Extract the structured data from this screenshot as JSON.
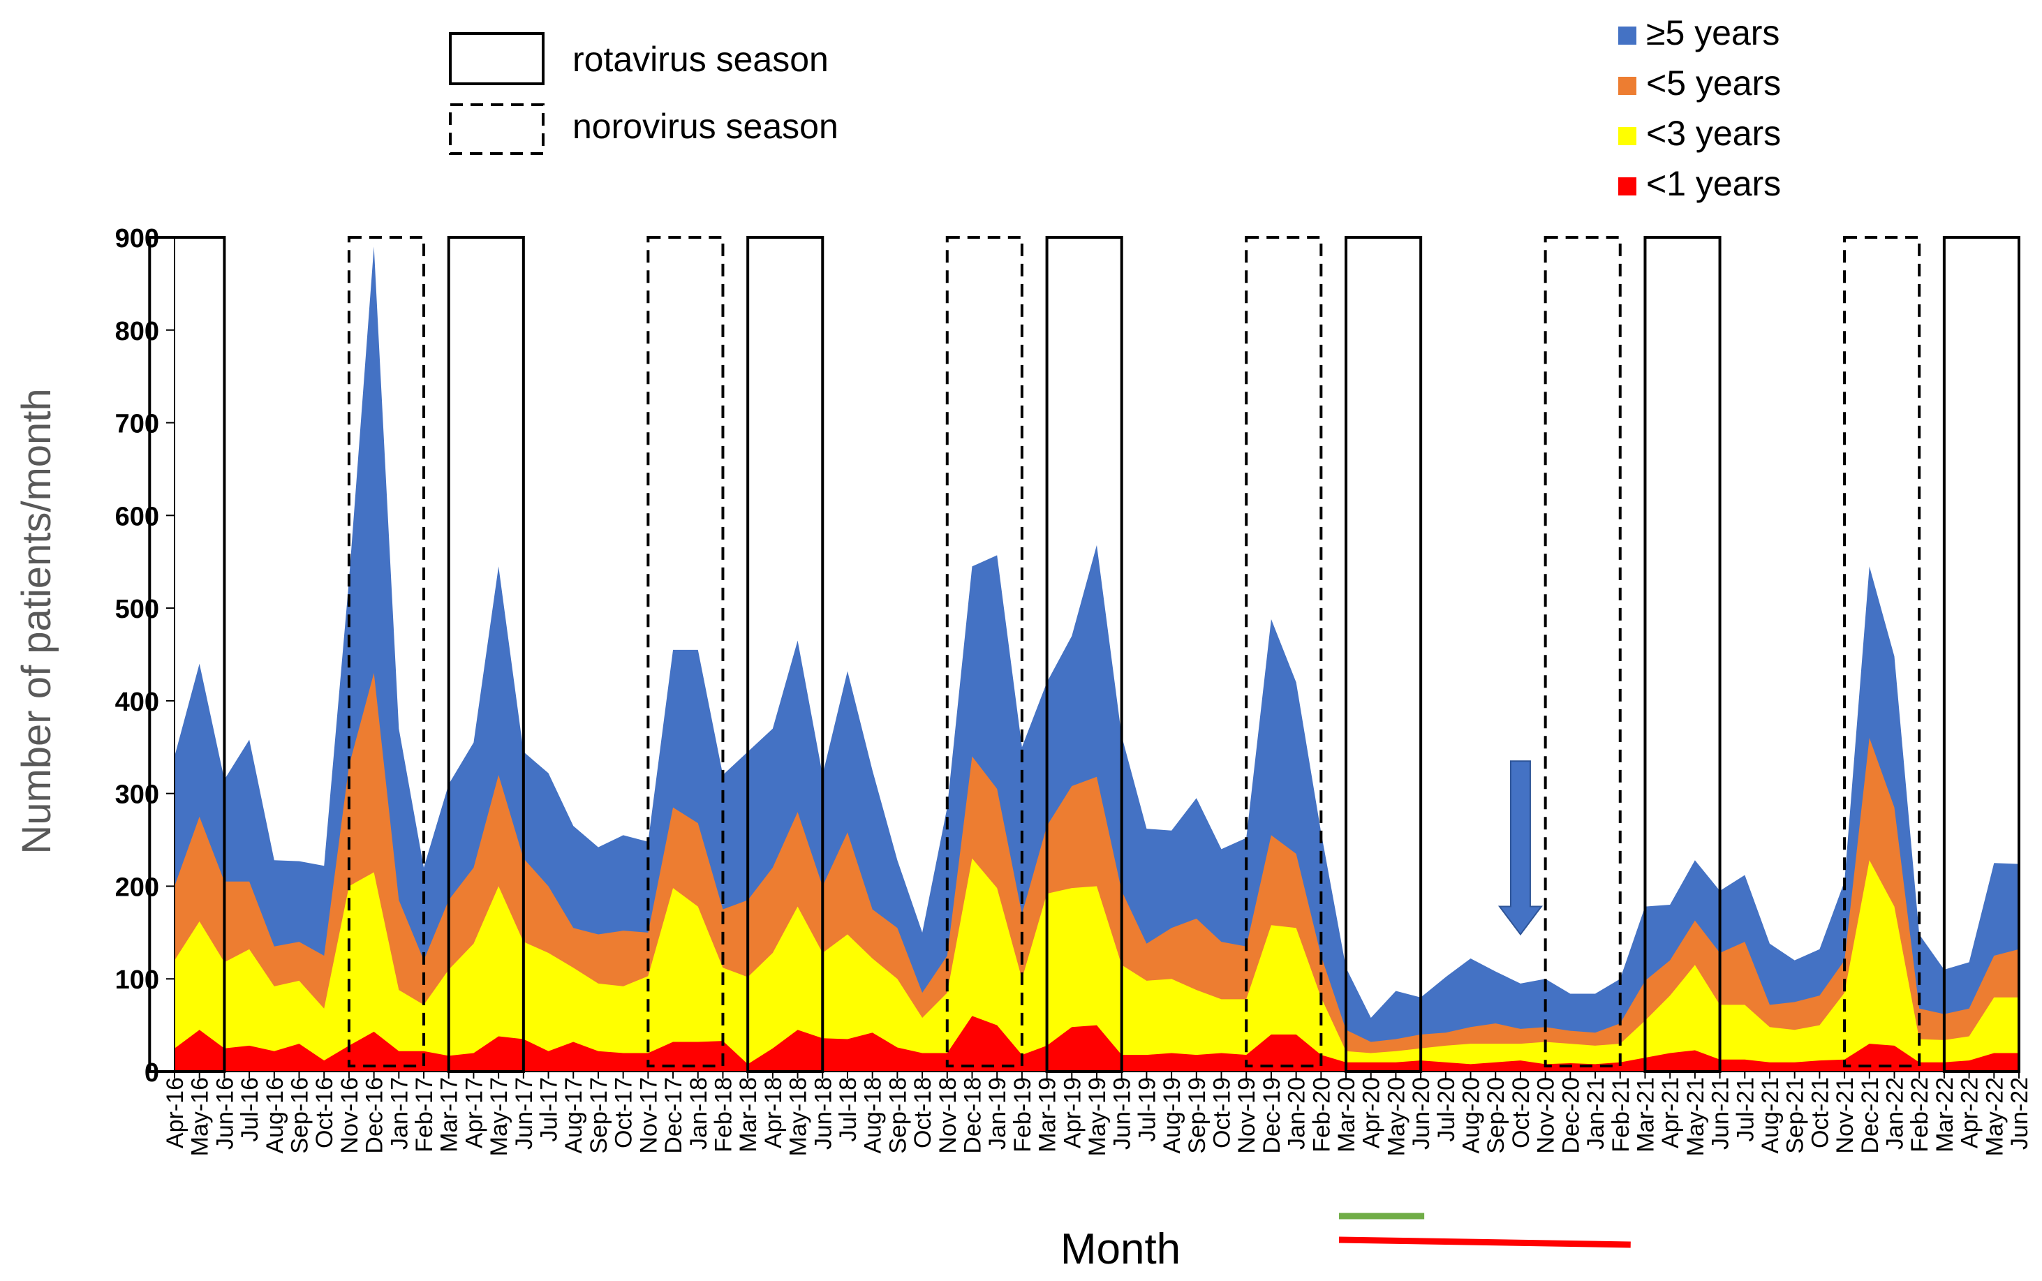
{
  "chart_data": {
    "type": "area",
    "stacked": false,
    "title": "",
    "xlabel": "Month",
    "ylabel": "Number of patients/month",
    "ylim": [
      0,
      900
    ],
    "yticks": [
      0,
      100,
      200,
      300,
      400,
      500,
      600,
      700,
      800,
      900
    ],
    "grid": false,
    "legend_position": "top-right",
    "categories": [
      "Apr-16",
      "May-16",
      "Jun-16",
      "Jul-16",
      "Aug-16",
      "Sep-16",
      "Oct-16",
      "Nov-16",
      "Dec-16",
      "Jan-17",
      "Feb-17",
      "Mar-17",
      "Apr-17",
      "May-17",
      "Jun-17",
      "Jul-17",
      "Aug-17",
      "Sep-17",
      "Oct-17",
      "Nov-17",
      "Dec-17",
      "Jan-18",
      "Feb-18",
      "Mar-18",
      "Apr-18",
      "May-18",
      "Jun-18",
      "Jul-18",
      "Aug-18",
      "Sep-18",
      "Oct-18",
      "Nov-18",
      "Dec-18",
      "Jan-19",
      "Feb-19",
      "Mar-19",
      "Apr-19",
      "May-19",
      "Jun-19",
      "Jul-19",
      "Aug-19",
      "Sep-19",
      "Oct-19",
      "Nov-19",
      "Dec-19",
      "Jan-20",
      "Feb-20",
      "Mar-20",
      "Apr-20",
      "May-20",
      "Jun-20",
      "Jul-20",
      "Aug-20",
      "Sep-20",
      "Oct-20",
      "Nov-20",
      "Dec-20",
      "Jan-21",
      "Feb-21",
      "Mar-21",
      "Apr-21",
      "May-21",
      "Jun-21",
      "Jul-21",
      "Aug-21",
      "Sep-21",
      "Oct-21",
      "Nov-21",
      "Dec-21",
      "Jan-22",
      "Feb-22",
      "Mar-22",
      "Apr-22",
      "May-22",
      "Jun-22"
    ],
    "series": [
      {
        "name": "≥5 years",
        "color": "#4472C4",
        "values": [
          340,
          440,
          315,
          358,
          228,
          227,
          222,
          530,
          890,
          370,
          220,
          310,
          355,
          545,
          345,
          322,
          265,
          242,
          255,
          248,
          455,
          455,
          320,
          345,
          370,
          465,
          320,
          432,
          325,
          228,
          150,
          285,
          545,
          557,
          350,
          420,
          470,
          568,
          362,
          262,
          260,
          295,
          240,
          252,
          488,
          420,
          258,
          112,
          58,
          87,
          80,
          102,
          122,
          108,
          95,
          100,
          84,
          84,
          100,
          178,
          180,
          228,
          195,
          212,
          138,
          120,
          132,
          205,
          545,
          448,
          148,
          110,
          118,
          225,
          224
        ]
      },
      {
        "name": "<5 years",
        "color": "#ED7D31",
        "values": [
          200,
          275,
          205,
          205,
          135,
          140,
          125,
          330,
          430,
          185,
          120,
          185,
          220,
          320,
          230,
          200,
          155,
          148,
          152,
          150,
          285,
          268,
          175,
          185,
          220,
          280,
          200,
          258,
          175,
          155,
          85,
          125,
          340,
          305,
          170,
          265,
          308,
          318,
          195,
          138,
          155,
          165,
          140,
          135,
          255,
          235,
          125,
          45,
          32,
          35,
          40,
          42,
          48,
          52,
          46,
          48,
          44,
          42,
          52,
          98,
          120,
          163,
          128,
          140,
          72,
          75,
          82,
          120,
          360,
          285,
          68,
          62,
          68,
          125,
          132
        ]
      },
      {
        "name": "<3 years",
        "color": "#FFFF00",
        "values": [
          120,
          162,
          118,
          132,
          92,
          98,
          68,
          200,
          215,
          88,
          72,
          110,
          138,
          200,
          140,
          128,
          112,
          95,
          92,
          103,
          198,
          178,
          112,
          102,
          128,
          178,
          128,
          148,
          122,
          100,
          58,
          85,
          230,
          198,
          100,
          192,
          198,
          200,
          115,
          98,
          100,
          88,
          78,
          78,
          158,
          155,
          80,
          22,
          20,
          22,
          25,
          28,
          30,
          30,
          30,
          32,
          30,
          28,
          30,
          55,
          82,
          115,
          72,
          72,
          48,
          45,
          50,
          85,
          228,
          178,
          35,
          34,
          38,
          80,
          80
        ]
      },
      {
        "name": "<1 years",
        "color": "#FF0000",
        "values": [
          25,
          45,
          25,
          28,
          22,
          30,
          12,
          28,
          43,
          22,
          22,
          17,
          20,
          38,
          35,
          22,
          32,
          22,
          20,
          20,
          32,
          32,
          33,
          8,
          25,
          45,
          36,
          35,
          42,
          26,
          20,
          20,
          60,
          50,
          18,
          28,
          48,
          50,
          18,
          18,
          20,
          18,
          20,
          18,
          40,
          40,
          18,
          10,
          10,
          10,
          12,
          10,
          8,
          10,
          12,
          8,
          9,
          8,
          10,
          15,
          20,
          23,
          13,
          13,
          10,
          10,
          12,
          13,
          30,
          28,
          10,
          10,
          12,
          20,
          20
        ]
      }
    ],
    "rotavirus_seasons": [
      [
        "Mar-16",
        "Jun-16"
      ],
      [
        "Mar-17",
        "Jun-17"
      ],
      [
        "Mar-18",
        "Jun-18"
      ],
      [
        "Mar-19",
        "Jun-19"
      ],
      [
        "Mar-20",
        "Jun-20"
      ],
      [
        "Mar-21",
        "Jun-21"
      ],
      [
        "Mar-22",
        "Jun-22"
      ]
    ],
    "norovirus_seasons": [
      [
        "Nov-16",
        "Feb-17"
      ],
      [
        "Nov-17",
        "Feb-18"
      ],
      [
        "Nov-18",
        "Feb-19"
      ],
      [
        "Nov-19",
        "Feb-20"
      ],
      [
        "Nov-20",
        "Feb-21"
      ],
      [
        "Nov-21",
        "Feb-22"
      ]
    ],
    "annotations": {
      "arrow_at": "Oct-20",
      "green_line": [
        "Mar-20",
        "Jun-20"
      ],
      "red_line": [
        "Mar-20",
        "Feb-21"
      ]
    }
  },
  "legend": {
    "rotavirus_label": "rotavirus season",
    "norovirus_label": "norovirus season"
  },
  "colors": {
    "axis": "#000000",
    "tick_label": "#000000",
    "ylabel": "#595959",
    "arrow": "#4472C4",
    "green_line": "#70AD47",
    "red_line": "#FF0000"
  }
}
